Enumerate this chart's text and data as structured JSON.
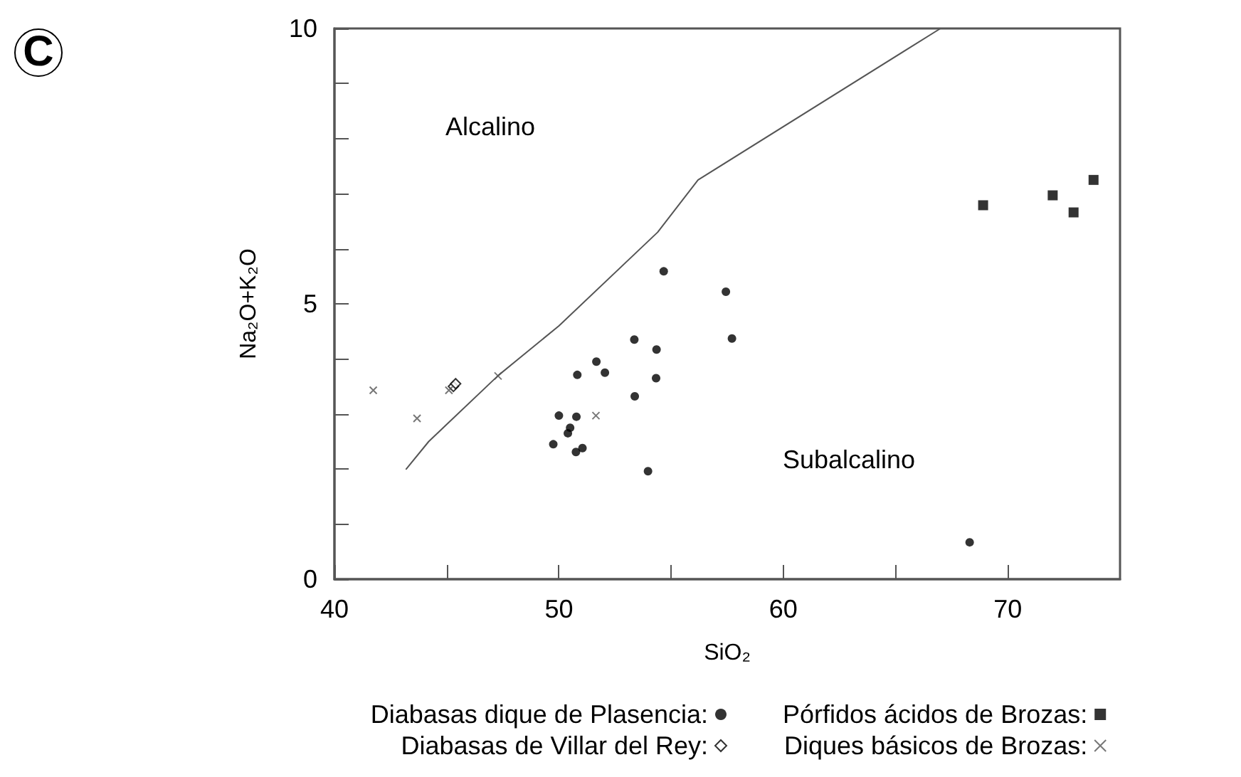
{
  "chart_data": {
    "type": "scatter",
    "xlabel": "SiO₂",
    "ylabel": "Na₂O+K₂O",
    "xlim": [
      40,
      75
    ],
    "xticks": [
      40,
      {
        "value": 45,
        "label": null
      },
      50,
      {
        "value": 55,
        "label": null
      },
      60,
      {
        "value": 65,
        "label": null
      },
      70
    ],
    "ylim": [
      0,
      10
    ],
    "yticks": [
      0,
      {
        "value": 1,
        "label": null
      },
      {
        "value": 2,
        "label": null
      },
      {
        "value": 3,
        "label": null
      },
      {
        "value": 4,
        "label": null
      },
      5,
      {
        "value": 6,
        "label": null
      },
      {
        "value": 7,
        "label": null
      },
      {
        "value": 8,
        "label": null
      },
      {
        "value": 9,
        "label": null
      },
      10
    ],
    "grid": false,
    "legend": "bottom",
    "series": [
      {
        "name": "Diabasas dique de Plasencia:",
        "color": "#000000",
        "marker": "circle",
        "x": [
          53.36,
          54.35,
          51.67,
          50.82,
          52.05,
          54.33,
          53.38,
          50.0,
          50.78,
          50.4,
          50.5,
          49.75,
          50.76,
          51.05,
          53.97,
          54.67,
          57.44,
          57.71,
          68.3
        ],
        "values": [
          4.35,
          4.17,
          3.95,
          3.71,
          3.75,
          3.65,
          3.32,
          2.97,
          2.95,
          2.65,
          2.75,
          2.45,
          2.31,
          2.38,
          1.96,
          5.59,
          5.22,
          4.37,
          0.67
        ]
      },
      {
        "name": "Diabasas de Villar del Rey:",
        "color": "#000000",
        "marker": "diamond",
        "x": [
          45.3,
          45.4
        ],
        "values": [
          3.5,
          3.55
        ]
      },
      {
        "name": "Pórfidos ácidos de Brozas:",
        "color": "#000000",
        "marker": "square",
        "x": [
          68.9,
          72.0,
          72.93,
          73.82
        ],
        "values": [
          6.79,
          6.97,
          6.66,
          7.25
        ]
      },
      {
        "name": "Diques básicos de Brozas:",
        "color": "#555555",
        "marker": "cross",
        "x": [
          41.73,
          43.68,
          45.1,
          47.29,
          51.65
        ],
        "values": [
          3.43,
          2.92,
          3.43,
          3.69,
          2.97
        ]
      },
      {
        "type": "line",
        "color": "#555555",
        "marker": "none",
        "x": [
          43.2,
          44.2,
          45.1,
          47.3,
          50.0,
          54.4,
          56.2,
          67.0
        ],
        "values": [
          2.0,
          2.5,
          2.85,
          3.7,
          4.6,
          6.3,
          7.25,
          10.0
        ]
      }
    ],
    "annotations": [
      "C",
      "Alcalino",
      "Subalcalino"
    ]
  }
}
